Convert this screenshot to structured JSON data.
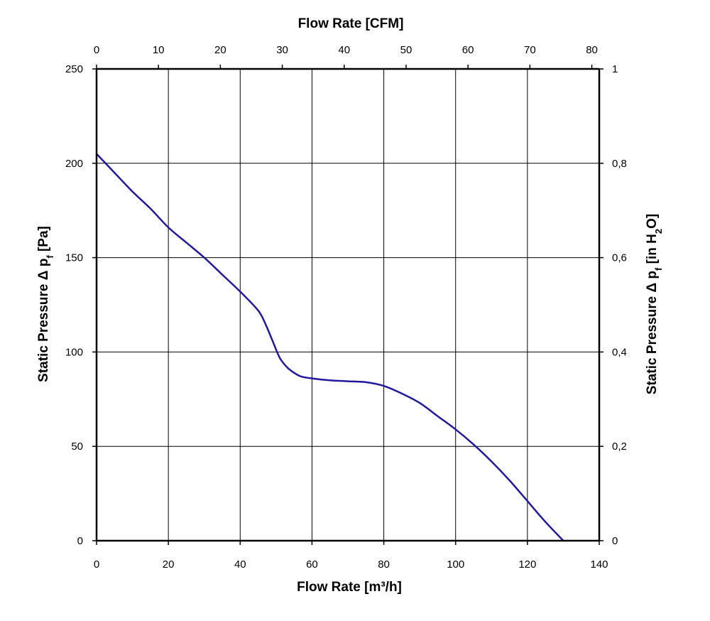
{
  "chart_data": {
    "type": "line",
    "xlabel": "Flow Rate [m³/h]",
    "x2label": "Flow Rate [CFM]",
    "ylabel": "Static Pressure Δ p",
    "ylabel_sub": "f",
    "ylabel_unit": " [Pa]",
    "y2label": "Static Pressure Δ p",
    "y2label_sub": "f",
    "y2label_unit_pre": " [in H",
    "y2label_unit_sub": "2",
    "y2label_unit_post": "O]",
    "xlim": [
      0,
      140
    ],
    "ylim": [
      0,
      250
    ],
    "x2lim": [
      0,
      81.2
    ],
    "y2lim": [
      0,
      1
    ],
    "x_ticks": [
      "0",
      "20",
      "40",
      "60",
      "80",
      "100",
      "120",
      "140"
    ],
    "y_ticks": [
      "0",
      "50",
      "100",
      "150",
      "200",
      "250"
    ],
    "x2_ticks": [
      "0",
      "10",
      "20",
      "30",
      "40",
      "50",
      "60",
      "70",
      "80"
    ],
    "y2_ticks": [
      "0",
      "0,2",
      "0,4",
      "0,6",
      "0,8",
      "1"
    ],
    "grid": true,
    "line_color": "#1f1aa0",
    "series": [
      {
        "x": [
          0,
          5,
          10,
          15,
          20,
          25,
          30,
          35,
          40,
          45,
          47,
          49,
          51,
          53,
          55,
          57,
          60,
          65,
          70,
          75,
          80,
          85,
          90,
          95,
          100,
          105,
          110,
          115,
          120,
          125,
          130
        ],
        "y": [
          205,
          195,
          185,
          176,
          166,
          158,
          150,
          141,
          132,
          122,
          115,
          106,
          97,
          92,
          89,
          87,
          86,
          85,
          84.5,
          84,
          82,
          78,
          73,
          66,
          59,
          51,
          42,
          32,
          21,
          10,
          0
        ]
      }
    ]
  }
}
